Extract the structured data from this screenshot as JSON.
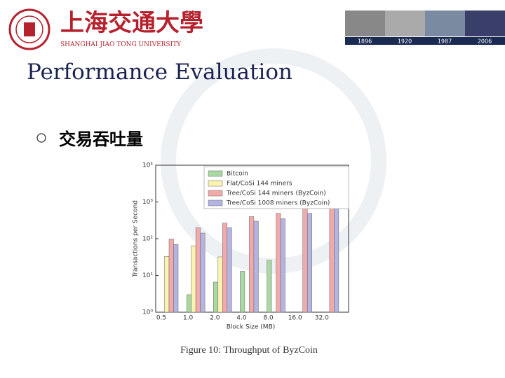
{
  "header": {
    "school_cn": "上海交通大學",
    "school_en": "SHANGHAI JIAO TONG UNIVERSITY",
    "years": [
      "1896",
      "1920",
      "1987",
      "2006"
    ]
  },
  "title": "Performance Evaluation",
  "bullet": "交易吞吐量",
  "caption": "Figure 10: Throughput of ByzCoin",
  "chart_data": {
    "type": "bar",
    "x_label": "Block Size (MB)",
    "y_label": "Transactions per Second",
    "categories": [
      "0.5",
      "1.0",
      "2.0",
      "4.0",
      "8.0",
      "16.0",
      "32.0"
    ],
    "series": [
      {
        "name": "Bitcoin",
        "color": "#a9d8a3",
        "values": [
          null,
          3,
          6.6,
          13,
          26,
          null,
          null
        ]
      },
      {
        "name": "Flat/CoSi 144 miners",
        "color": "#fbf3b0",
        "values": [
          33,
          64,
          32,
          null,
          null,
          null,
          null
        ]
      },
      {
        "name": "Tree/CoSi 144 miners (ByzCoin)",
        "color": "#f2a9aa",
        "values": [
          98,
          200,
          265,
          400,
          490,
          710,
          900
        ]
      },
      {
        "name": "Tree/CoSi 1008 miners (ByzCoin)",
        "color": "#b4b4e2",
        "values": [
          70,
          142,
          200,
          300,
          350,
          490,
          650
        ]
      }
    ],
    "ylim": [
      1,
      10000
    ],
    "log_y": true,
    "yticks": [
      {
        "value": 1,
        "label": "10⁰"
      },
      {
        "value": 10,
        "label": "10¹"
      },
      {
        "value": 100,
        "label": "10²"
      },
      {
        "value": 1000,
        "label": "10³"
      },
      {
        "value": 10000,
        "label": "10⁴"
      }
    ],
    "legend": "upper right"
  }
}
